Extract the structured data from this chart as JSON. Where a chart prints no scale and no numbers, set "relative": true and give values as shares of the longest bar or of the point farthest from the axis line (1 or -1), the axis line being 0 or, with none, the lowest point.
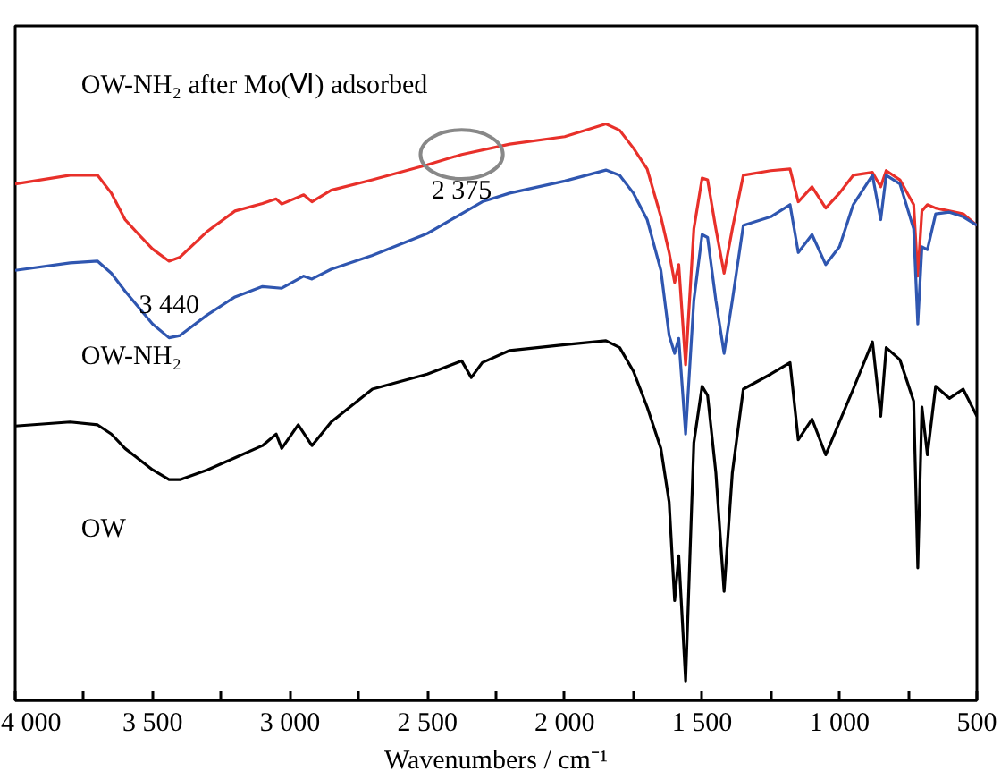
{
  "chart_data": {
    "type": "line",
    "relative": true,
    "xlabel": "Wavenumbers / cm⁻¹",
    "xlim": [
      4000,
      500
    ],
    "xticks": [
      {
        "value": 4000,
        "label": "4 000"
      },
      {
        "value": 3750,
        "label": null
      },
      {
        "value": 3500,
        "label": "3 500"
      },
      {
        "value": 3250,
        "label": null
      },
      {
        "value": 3000,
        "label": "3 000"
      },
      {
        "value": 2750,
        "label": null
      },
      {
        "value": 2500,
        "label": "2 500"
      },
      {
        "value": 2250,
        "label": null
      },
      {
        "value": 2000,
        "label": "2 000"
      },
      {
        "value": 1750,
        "label": null
      },
      {
        "value": 1500,
        "label": "1 500"
      },
      {
        "value": 1250,
        "label": null
      },
      {
        "value": 1000,
        "label": "1 000"
      },
      {
        "value": 750,
        "label": null
      },
      {
        "value": 500,
        "label": "500"
      }
    ],
    "grid": false,
    "line_style": "solid",
    "marker": "none",
    "series": [
      {
        "name": "OW-NH₂ after Mo(Ⅵ) adsorbed",
        "color": "#e8302a",
        "x": [
          4000,
          3800,
          3700,
          3650,
          3600,
          3550,
          3500,
          3440,
          3400,
          3300,
          3200,
          3100,
          3050,
          3030,
          2950,
          2920,
          2850,
          2700,
          2500,
          2375,
          2200,
          2000,
          1850,
          1800,
          1750,
          1700,
          1650,
          1620,
          1600,
          1585,
          1560,
          1530,
          1500,
          1480,
          1450,
          1420,
          1390,
          1350,
          1250,
          1180,
          1150,
          1100,
          1050,
          1000,
          950,
          880,
          850,
          830,
          780,
          730,
          715,
          700,
          680,
          650,
          600,
          550,
          500
        ],
        "values": [
          0.896,
          0.911,
          0.911,
          0.88,
          0.834,
          0.808,
          0.783,
          0.762,
          0.769,
          0.814,
          0.849,
          0.862,
          0.87,
          0.861,
          0.877,
          0.865,
          0.885,
          0.903,
          0.929,
          0.947,
          0.965,
          0.978,
          1.0,
          0.989,
          0.958,
          0.922,
          0.839,
          0.777,
          0.725,
          0.756,
          0.582,
          0.818,
          0.906,
          0.903,
          0.818,
          0.741,
          0.818,
          0.911,
          0.919,
          0.922,
          0.865,
          0.891,
          0.854,
          0.88,
          0.911,
          0.916,
          0.891,
          0.919,
          0.903,
          0.86,
          0.736,
          0.849,
          0.86,
          0.854,
          0.849,
          0.844,
          0.824
        ]
      },
      {
        "name": "OW-NH₂",
        "color": "#2f56b0",
        "x": [
          4000,
          3800,
          3700,
          3650,
          3600,
          3500,
          3440,
          3400,
          3300,
          3200,
          3100,
          3030,
          2950,
          2920,
          2850,
          2700,
          2500,
          2300,
          2200,
          2000,
          1850,
          1800,
          1750,
          1700,
          1650,
          1620,
          1600,
          1585,
          1560,
          1530,
          1500,
          1480,
          1450,
          1420,
          1390,
          1350,
          1250,
          1180,
          1150,
          1100,
          1050,
          1000,
          950,
          880,
          850,
          830,
          780,
          730,
          715,
          700,
          680,
          650,
          600,
          550,
          500
        ],
        "values": [
          0.746,
          0.759,
          0.762,
          0.741,
          0.71,
          0.653,
          0.629,
          0.633,
          0.669,
          0.7,
          0.718,
          0.715,
          0.736,
          0.731,
          0.748,
          0.772,
          0.81,
          0.865,
          0.88,
          0.901,
          0.92,
          0.911,
          0.88,
          0.834,
          0.746,
          0.633,
          0.602,
          0.628,
          0.462,
          0.694,
          0.808,
          0.803,
          0.694,
          0.602,
          0.694,
          0.824,
          0.839,
          0.86,
          0.777,
          0.808,
          0.756,
          0.787,
          0.86,
          0.911,
          0.834,
          0.911,
          0.896,
          0.818,
          0.653,
          0.787,
          0.782,
          0.844,
          0.847,
          0.839,
          0.824
        ]
      },
      {
        "name": "OW",
        "color": "#000000",
        "x": [
          4000,
          3800,
          3700,
          3650,
          3600,
          3500,
          3440,
          3400,
          3300,
          3200,
          3100,
          3050,
          3030,
          2970,
          2920,
          2850,
          2700,
          2500,
          2375,
          2340,
          2300,
          2200,
          2000,
          1850,
          1800,
          1750,
          1700,
          1650,
          1620,
          1600,
          1585,
          1560,
          1530,
          1500,
          1480,
          1450,
          1420,
          1390,
          1350,
          1250,
          1180,
          1150,
          1100,
          1050,
          1000,
          950,
          880,
          850,
          830,
          780,
          730,
          715,
          700,
          680,
          650,
          600,
          550,
          500
        ],
        "values": [
          0.476,
          0.483,
          0.478,
          0.462,
          0.437,
          0.4,
          0.383,
          0.383,
          0.4,
          0.421,
          0.442,
          0.462,
          0.437,
          0.478,
          0.442,
          0.483,
          0.54,
          0.566,
          0.589,
          0.56,
          0.586,
          0.607,
          0.617,
          0.624,
          0.612,
          0.571,
          0.509,
          0.437,
          0.344,
          0.173,
          0.251,
          0.034,
          0.447,
          0.545,
          0.529,
          0.395,
          0.189,
          0.395,
          0.54,
          0.566,
          0.586,
          0.452,
          0.488,
          0.426,
          0.483,
          0.54,
          0.622,
          0.493,
          0.612,
          0.591,
          0.519,
          0.23,
          0.509,
          0.426,
          0.545,
          0.524,
          0.54,
          0.493
        ]
      }
    ],
    "annotations": [
      {
        "text": "3 440",
        "x": 3440,
        "y": 0.629
      },
      {
        "text": "2 375",
        "x": 2375,
        "y": 0.947
      }
    ]
  }
}
